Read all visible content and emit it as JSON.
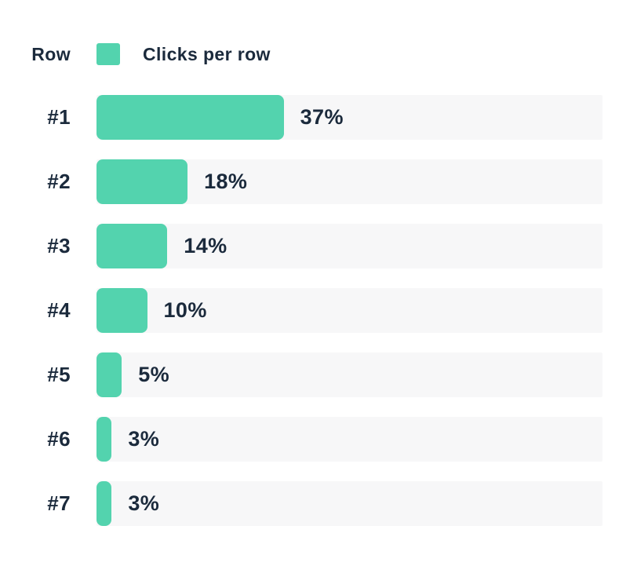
{
  "colors": {
    "page_bg": "#ffffff",
    "bar_fill": "#53d3ae",
    "bar_track": "#f7f7f8",
    "text_color": "#1b2a3c"
  },
  "header": {
    "row_axis_label": "Row",
    "legend_swatch": "bar-color-swatch",
    "legend_label": "Clicks per row"
  },
  "chart_data": {
    "type": "bar",
    "orientation": "horizontal",
    "title": "Clicks per row",
    "xlabel": "",
    "ylabel": "Row",
    "categories": [
      "#1",
      "#2",
      "#3",
      "#4",
      "#5",
      "#6",
      "#7"
    ],
    "values": [
      37,
      18,
      14,
      10,
      5,
      3,
      3
    ],
    "value_format": "percent",
    "xlim": [
      0,
      100
    ],
    "grid": false,
    "legend_position": "top",
    "rows": [
      {
        "label": "#1",
        "value": 37,
        "value_label": "37%"
      },
      {
        "label": "#2",
        "value": 18,
        "value_label": "18%"
      },
      {
        "label": "#3",
        "value": 14,
        "value_label": "14%"
      },
      {
        "label": "#4",
        "value": 10,
        "value_label": "10%"
      },
      {
        "label": "#5",
        "value": 5,
        "value_label": "5%"
      },
      {
        "label": "#6",
        "value": 3,
        "value_label": "3%"
      },
      {
        "label": "#7",
        "value": 3,
        "value_label": "3%"
      }
    ]
  }
}
